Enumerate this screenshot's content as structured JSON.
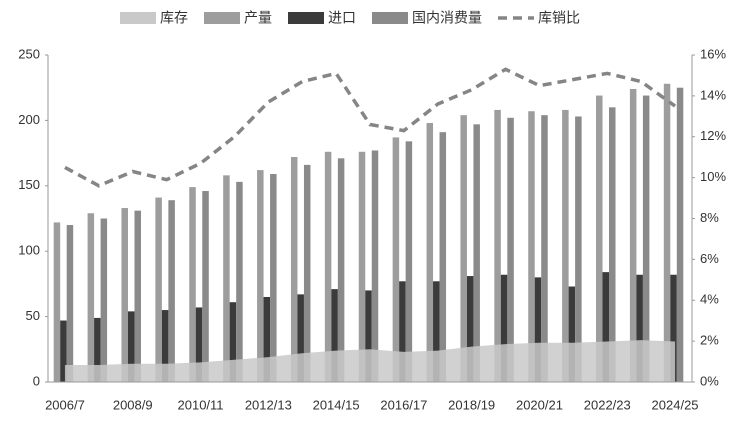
{
  "chart_data": {
    "type": "combo",
    "categories": [
      "2006/7",
      null,
      "2008/9",
      null,
      "2010/11",
      null,
      "2012/13",
      null,
      "2014/15",
      null,
      "2016/17",
      null,
      "2018/19",
      null,
      "2020/21",
      null,
      "2022/23",
      null,
      "2024/25"
    ],
    "series": [
      {
        "name": "库存",
        "kind": "area",
        "color": "#c9c9c9",
        "values": [
          13,
          13,
          14,
          14,
          15,
          17,
          19,
          22,
          24,
          25,
          23,
          24,
          27,
          29,
          30,
          30,
          31,
          32,
          31
        ]
      },
      {
        "name": "产量",
        "kind": "bar",
        "color": "#9d9d9d",
        "values": [
          122,
          129,
          133,
          141,
          149,
          158,
          162,
          172,
          176,
          176,
          187,
          198,
          204,
          208,
          207,
          208,
          219,
          224,
          228
        ]
      },
      {
        "name": "进口",
        "kind": "bar",
        "color": "#3b3b3b",
        "values": [
          47,
          49,
          54,
          55,
          57,
          61,
          65,
          67,
          71,
          70,
          77,
          77,
          81,
          82,
          80,
          73,
          84,
          82,
          82
        ]
      },
      {
        "name": "国内消费量",
        "kind": "bar",
        "color": "#8a8a8a",
        "values": [
          120,
          125,
          131,
          139,
          146,
          153,
          159,
          166,
          171,
          177,
          184,
          191,
          197,
          202,
          204,
          203,
          210,
          219,
          225
        ]
      },
      {
        "name": "库销比",
        "kind": "line",
        "axis": "y2",
        "dashed": true,
        "color": "#858585",
        "values": [
          10.5,
          9.6,
          10.3,
          9.9,
          10.7,
          12.0,
          13.7,
          14.7,
          15.1,
          12.6,
          12.3,
          13.6,
          14.3,
          15.3,
          14.5,
          14.8,
          15.1,
          14.7,
          13.5
        ]
      }
    ],
    "ylim": [
      0,
      250
    ],
    "yticks": [
      0,
      50,
      100,
      150,
      200,
      250
    ],
    "y2lim": [
      0,
      16
    ],
    "y2ticks": [
      {
        "value": 0,
        "label": "0%"
      },
      {
        "value": 2,
        "label": "2%"
      },
      {
        "value": 4,
        "label": "4%"
      },
      {
        "value": 6,
        "label": "6%"
      },
      {
        "value": 8,
        "label": "8%"
      },
      {
        "value": 10,
        "label": "10%"
      },
      {
        "value": 12,
        "label": "12%"
      },
      {
        "value": 14,
        "label": "14%"
      },
      {
        "value": 16,
        "label": "16%"
      }
    ],
    "legend": "top"
  }
}
